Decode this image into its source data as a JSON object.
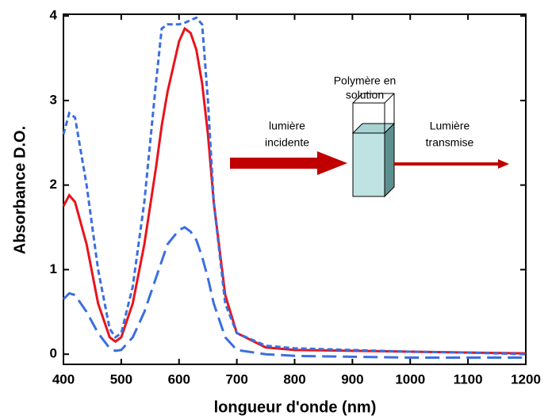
{
  "chart_data": {
    "type": "line",
    "xlabel": "longueur d'onde (nm)",
    "ylabel": "Absorbance D.O.",
    "x": [
      400,
      410,
      420,
      440,
      460,
      480,
      490,
      500,
      520,
      540,
      560,
      570,
      580,
      600,
      610,
      620,
      630,
      640,
      650,
      660,
      680,
      700,
      750,
      800,
      900,
      1000,
      1100,
      1200
    ],
    "series": [
      {
        "color": "#e8141c",
        "style": "solid",
        "values": [
          1.75,
          1.88,
          1.8,
          1.3,
          0.6,
          0.2,
          0.15,
          0.2,
          0.6,
          1.3,
          2.2,
          2.7,
          3.1,
          3.7,
          3.85,
          3.8,
          3.6,
          3.2,
          2.6,
          1.8,
          0.7,
          0.25,
          0.08,
          0.05,
          0.04,
          0.03,
          0.02,
          0.01
        ]
      },
      {
        "color": "#3b6fe0",
        "style": "short-dash",
        "values": [
          2.6,
          2.85,
          2.8,
          2.0,
          1.0,
          0.3,
          0.2,
          0.25,
          0.8,
          1.8,
          3.2,
          3.85,
          3.9,
          3.9,
          3.92,
          3.95,
          3.98,
          3.9,
          3.0,
          1.8,
          0.6,
          0.25,
          0.1,
          0.07,
          0.05,
          0.03,
          0.02,
          0.0
        ]
      },
      {
        "color": "#3b6fe0",
        "style": "long-dash",
        "values": [
          0.65,
          0.72,
          0.7,
          0.5,
          0.25,
          0.07,
          0.04,
          0.05,
          0.2,
          0.5,
          0.9,
          1.1,
          1.3,
          1.47,
          1.5,
          1.45,
          1.35,
          1.15,
          0.9,
          0.6,
          0.2,
          0.05,
          0.0,
          -0.02,
          -0.03,
          -0.04,
          -0.04,
          -0.04
        ]
      }
    ],
    "xlim": [
      400,
      1200
    ],
    "xticks": [
      400,
      500,
      600,
      700,
      800,
      900,
      1000,
      1100,
      1200
    ],
    "ylim": [
      -0.12,
      4.02
    ],
    "yticks": [
      0,
      1,
      2,
      3,
      4
    ],
    "grid": false,
    "annotations": [
      [
        "Polymère en",
        "solution"
      ],
      [
        "lumière",
        "incidente"
      ],
      [
        "Lumière",
        "transmise"
      ]
    ]
  }
}
